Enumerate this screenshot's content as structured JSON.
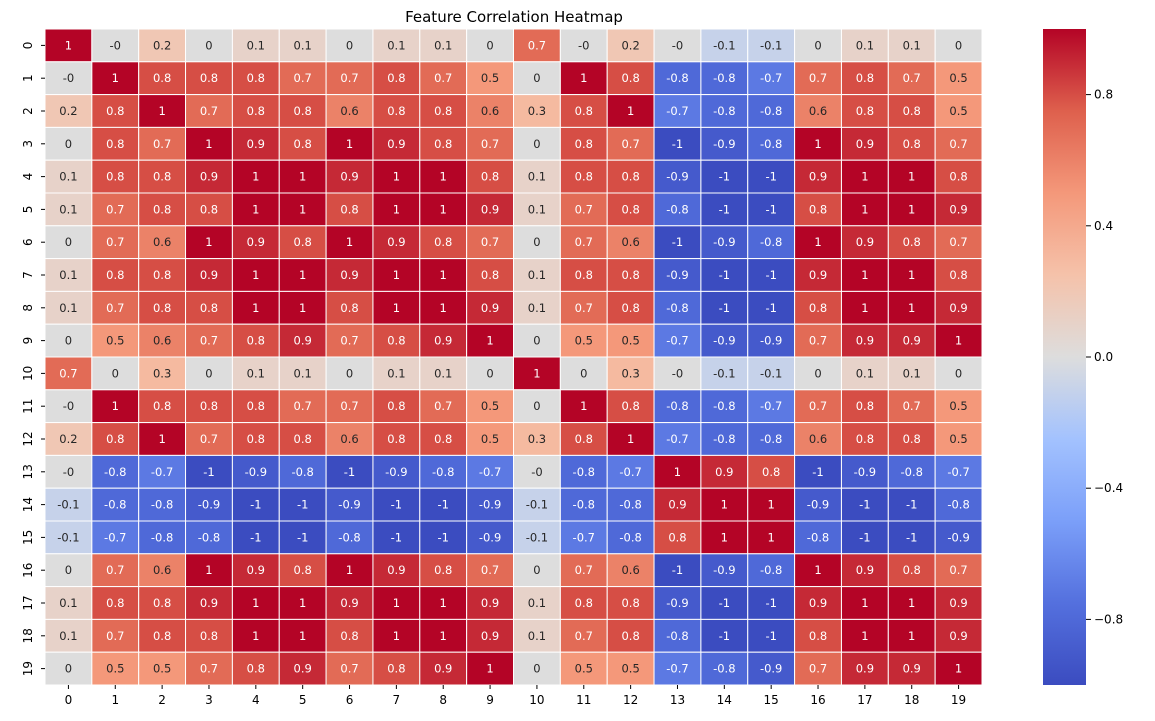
{
  "chart_data": {
    "type": "heatmap",
    "title": "Feature Correlation Heatmap",
    "xlabel": "",
    "ylabel": "",
    "x_categories": [
      "0",
      "1",
      "2",
      "3",
      "4",
      "5",
      "6",
      "7",
      "8",
      "9",
      "10",
      "11",
      "12",
      "13",
      "14",
      "15",
      "16",
      "17",
      "18",
      "19"
    ],
    "y_categories": [
      "0",
      "1",
      "2",
      "3",
      "4",
      "5",
      "6",
      "7",
      "8",
      "9",
      "10",
      "11",
      "12",
      "13",
      "14",
      "15",
      "16",
      "17",
      "18",
      "19"
    ],
    "cell_labels": [
      [
        "1",
        "-0",
        "0.2",
        "0",
        "0.1",
        "0.1",
        "0",
        "0.1",
        "0.1",
        "0",
        "0.7",
        "-0",
        "0.2",
        "-0",
        "-0.1",
        "-0.1",
        "0",
        "0.1",
        "0.1",
        "0"
      ],
      [
        "-0",
        "1",
        "0.8",
        "0.8",
        "0.8",
        "0.7",
        "0.7",
        "0.8",
        "0.7",
        "0.5",
        "0",
        "1",
        "0.8",
        "-0.8",
        "-0.8",
        "-0.7",
        "0.7",
        "0.8",
        "0.7",
        "0.5"
      ],
      [
        "0.2",
        "0.8",
        "1",
        "0.7",
        "0.8",
        "0.8",
        "0.6",
        "0.8",
        "0.8",
        "0.6",
        "0.3",
        "0.8",
        "1",
        "-0.7",
        "-0.8",
        "-0.8",
        "0.6",
        "0.8",
        "0.8",
        "0.5"
      ],
      [
        "0",
        "0.8",
        "0.7",
        "1",
        "0.9",
        "0.8",
        "1",
        "0.9",
        "0.8",
        "0.7",
        "0",
        "0.8",
        "0.7",
        "-1",
        "-0.9",
        "-0.8",
        "1",
        "0.9",
        "0.8",
        "0.7"
      ],
      [
        "0.1",
        "0.8",
        "0.8",
        "0.9",
        "1",
        "1",
        "0.9",
        "1",
        "1",
        "0.8",
        "0.1",
        "0.8",
        "0.8",
        "-0.9",
        "-1",
        "-1",
        "0.9",
        "1",
        "1",
        "0.8"
      ],
      [
        "0.1",
        "0.7",
        "0.8",
        "0.8",
        "1",
        "1",
        "0.8",
        "1",
        "1",
        "0.9",
        "0.1",
        "0.7",
        "0.8",
        "-0.8",
        "-1",
        "-1",
        "0.8",
        "1",
        "1",
        "0.9"
      ],
      [
        "0",
        "0.7",
        "0.6",
        "1",
        "0.9",
        "0.8",
        "1",
        "0.9",
        "0.8",
        "0.7",
        "0",
        "0.7",
        "0.6",
        "-1",
        "-0.9",
        "-0.8",
        "1",
        "0.9",
        "0.8",
        "0.7"
      ],
      [
        "0.1",
        "0.8",
        "0.8",
        "0.9",
        "1",
        "1",
        "0.9",
        "1",
        "1",
        "0.8",
        "0.1",
        "0.8",
        "0.8",
        "-0.9",
        "-1",
        "-1",
        "0.9",
        "1",
        "1",
        "0.8"
      ],
      [
        "0.1",
        "0.7",
        "0.8",
        "0.8",
        "1",
        "1",
        "0.8",
        "1",
        "1",
        "0.9",
        "0.1",
        "0.7",
        "0.8",
        "-0.8",
        "-1",
        "-1",
        "0.8",
        "1",
        "1",
        "0.9"
      ],
      [
        "0",
        "0.5",
        "0.6",
        "0.7",
        "0.8",
        "0.9",
        "0.7",
        "0.8",
        "0.9",
        "1",
        "0",
        "0.5",
        "0.5",
        "-0.7",
        "-0.9",
        "-0.9",
        "0.7",
        "0.9",
        "0.9",
        "1"
      ],
      [
        "0.7",
        "0",
        "0.3",
        "0",
        "0.1",
        "0.1",
        "0",
        "0.1",
        "0.1",
        "0",
        "1",
        "0",
        "0.3",
        "-0",
        "-0.1",
        "-0.1",
        "0",
        "0.1",
        "0.1",
        "0"
      ],
      [
        "-0",
        "1",
        "0.8",
        "0.8",
        "0.8",
        "0.7",
        "0.7",
        "0.8",
        "0.7",
        "0.5",
        "0",
        "1",
        "0.8",
        "-0.8",
        "-0.8",
        "-0.7",
        "0.7",
        "0.8",
        "0.7",
        "0.5"
      ],
      [
        "0.2",
        "0.8",
        "1",
        "0.7",
        "0.8",
        "0.8",
        "0.6",
        "0.8",
        "0.8",
        "0.5",
        "0.3",
        "0.8",
        "1",
        "-0.7",
        "-0.8",
        "-0.8",
        "0.6",
        "0.8",
        "0.8",
        "0.5"
      ],
      [
        "-0",
        "-0.8",
        "-0.7",
        "-1",
        "-0.9",
        "-0.8",
        "-1",
        "-0.9",
        "-0.8",
        "-0.7",
        "-0",
        "-0.8",
        "-0.7",
        "1",
        "0.9",
        "0.8",
        "-1",
        "-0.9",
        "-0.8",
        "-0.7"
      ],
      [
        "-0.1",
        "-0.8",
        "-0.8",
        "-0.9",
        "-1",
        "-1",
        "-0.9",
        "-1",
        "-1",
        "-0.9",
        "-0.1",
        "-0.8",
        "-0.8",
        "0.9",
        "1",
        "1",
        "-0.9",
        "-1",
        "-1",
        "-0.8"
      ],
      [
        "-0.1",
        "-0.7",
        "-0.8",
        "-0.8",
        "-1",
        "-1",
        "-0.8",
        "-1",
        "-1",
        "-0.9",
        "-0.1",
        "-0.7",
        "-0.8",
        "0.8",
        "1",
        "1",
        "-0.8",
        "-1",
        "-1",
        "-0.9"
      ],
      [
        "0",
        "0.7",
        "0.6",
        "1",
        "0.9",
        "0.8",
        "1",
        "0.9",
        "0.8",
        "0.7",
        "0",
        "0.7",
        "0.6",
        "-1",
        "-0.9",
        "-0.8",
        "1",
        "0.9",
        "0.8",
        "0.7"
      ],
      [
        "0.1",
        "0.8",
        "0.8",
        "0.9",
        "1",
        "1",
        "0.9",
        "1",
        "1",
        "0.9",
        "0.1",
        "0.8",
        "0.8",
        "-0.9",
        "-1",
        "-1",
        "0.9",
        "1",
        "1",
        "0.9"
      ],
      [
        "0.1",
        "0.7",
        "0.8",
        "0.8",
        "1",
        "1",
        "0.8",
        "1",
        "1",
        "0.9",
        "0.1",
        "0.7",
        "0.8",
        "-0.8",
        "-1",
        "-1",
        "0.8",
        "1",
        "1",
        "0.9"
      ],
      [
        "0",
        "0.5",
        "0.5",
        "0.7",
        "0.8",
        "0.9",
        "0.7",
        "0.8",
        "0.9",
        "1",
        "0",
        "0.5",
        "0.5",
        "-0.7",
        "-0.8",
        "-0.9",
        "0.7",
        "0.9",
        "0.9",
        "1"
      ]
    ],
    "colormap": "coolwarm",
    "colormap_stops": [
      "#3b4cc0",
      "#dddddd",
      "#b40426"
    ],
    "value_range": [
      -1,
      1
    ],
    "colorbar_ticks": [
      "0.8",
      "0.4",
      "0.0",
      "−0.4",
      "−0.8"
    ],
    "colorbar_tick_values": [
      0.8,
      0.4,
      0.0,
      -0.4,
      -0.8
    ],
    "grid": false,
    "legend": "right"
  }
}
